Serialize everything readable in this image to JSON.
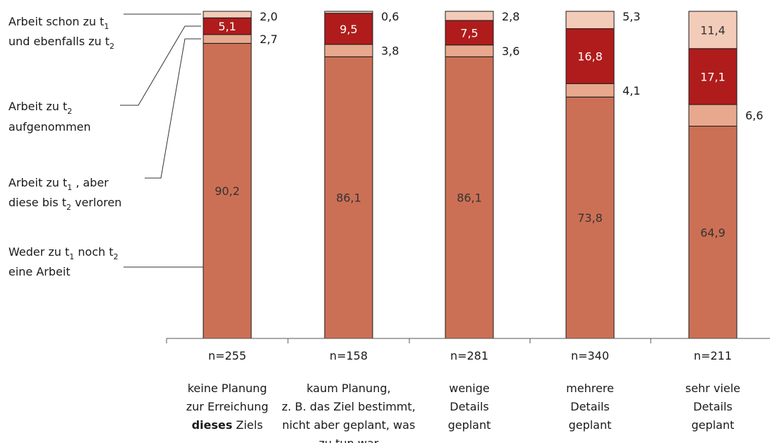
{
  "chart_data": {
    "type": "bar",
    "stacked": true,
    "ylim": [
      0,
      100
    ],
    "grid": false,
    "legend_placement": "left",
    "colors": {
      "weder": "#cc7055",
      "verloren": "#e8a88e",
      "aufgenommen": "#b01c1c",
      "schon": "#f3cbb9",
      "bar_outline": "#1a1a1a",
      "value_text_dark": "#333333",
      "value_text_light": "#ffffff"
    },
    "legend": [
      {
        "key": "schon",
        "lines": [
          "Arbeit schon zu t",
          "und ebenfalls zu t"
        ],
        "subs": [
          "1",
          "2"
        ]
      },
      {
        "key": "aufgenommen",
        "lines": [
          "Arbeit zu t",
          "aufgenommen"
        ],
        "subs": [
          "2",
          ""
        ]
      },
      {
        "key": "verloren",
        "lines": [
          "Arbeit zu t  , aber",
          "diese bis t  verloren"
        ],
        "subs": [
          "1",
          "2"
        ]
      },
      {
        "key": "weder",
        "lines": [
          "Weder zu t  noch t",
          "eine Arbeit"
        ],
        "subs": [
          "1",
          "2"
        ]
      }
    ],
    "categories": [
      {
        "n": "n=255",
        "label": [
          "keine Planung",
          "zur Erreichung",
          "dieses Ziels"
        ],
        "bold_word": "dieses"
      },
      {
        "n": "n=158",
        "label": [
          "kaum Planung,",
          "z. B. das Ziel bestimmt,",
          "nicht aber geplant, was",
          "zu tun war"
        ]
      },
      {
        "n": "n=281",
        "label": [
          "wenige",
          "Details",
          "geplant"
        ]
      },
      {
        "n": "n=340",
        "label": [
          "mehrere",
          "Details",
          "geplant"
        ]
      },
      {
        "n": "n=211",
        "label": [
          "sehr viele",
          "Details",
          "geplant"
        ]
      }
    ],
    "series": [
      {
        "key": "weder",
        "values": [
          90.2,
          86.1,
          86.1,
          73.8,
          64.9
        ],
        "labels": [
          "90,2",
          "86,1",
          "86,1",
          "73,8",
          "64,9"
        ]
      },
      {
        "key": "verloren",
        "values": [
          2.7,
          3.8,
          3.6,
          4.1,
          6.6
        ],
        "labels": [
          "2,7",
          "3,8",
          "3,6",
          "4,1",
          "6,6"
        ]
      },
      {
        "key": "aufgenommen",
        "values": [
          5.1,
          9.5,
          7.5,
          16.8,
          17.1
        ],
        "labels": [
          "5,1",
          "9,5",
          "7,5",
          "16,8",
          "17,1"
        ]
      },
      {
        "key": "schon",
        "values": [
          2.0,
          0.6,
          2.8,
          5.3,
          11.4
        ],
        "labels": [
          "2,0",
          "0,6",
          "2,8",
          "5,3",
          "11,4"
        ]
      }
    ]
  }
}
